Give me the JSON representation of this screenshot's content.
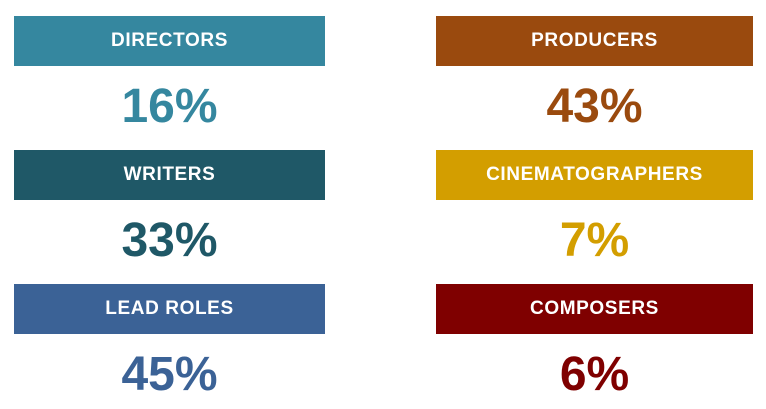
{
  "background": "#ffffff",
  "chart_data": {
    "type": "bar",
    "title": "",
    "xlabel": "",
    "ylabel": "",
    "categories": [
      "DIRECTORS",
      "WRITERS",
      "LEAD ROLES",
      "PRODUCERS",
      "CINEMATOGRAPHERS",
      "COMPOSERS"
    ],
    "values": [
      16,
      33,
      45,
      43,
      7,
      6
    ],
    "unit": "%",
    "layout": "2-column by 3-row grid of labeled percentage stat cards",
    "colors": [
      "#35879F",
      "#1F5867",
      "#3B6296",
      "#9A4A0E",
      "#D39E00",
      "#7F0000"
    ]
  },
  "stats": [
    {
      "label": "DIRECTORS",
      "value": "16%",
      "color": "#35879F"
    },
    {
      "label": "PRODUCERS",
      "value": "43%",
      "color": "#9A4A0E"
    },
    {
      "label": "WRITERS",
      "value": "33%",
      "color": "#1F5867"
    },
    {
      "label": "CINEMATOGRAPHERS",
      "value": "7%",
      "color": "#D39E00"
    },
    {
      "label": "LEAD ROLES",
      "value": "45%",
      "color": "#3B6296"
    },
    {
      "label": "COMPOSERS",
      "value": "6%",
      "color": "#7F0000"
    }
  ]
}
